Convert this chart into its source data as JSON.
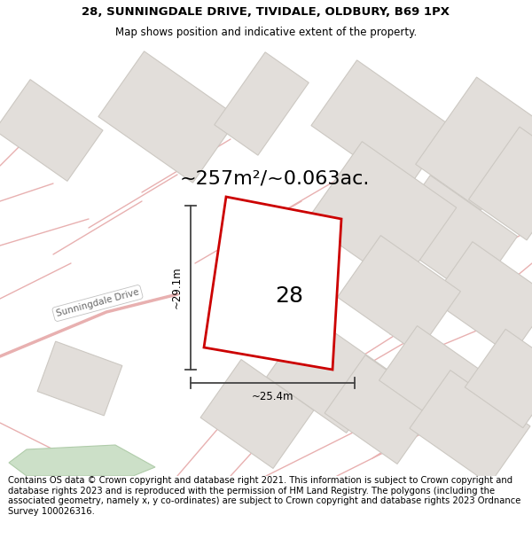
{
  "title_line1": "28, SUNNINGDALE DRIVE, TIVIDALE, OLDBURY, B69 1PX",
  "title_line2": "Map shows position and indicative extent of the property.",
  "area_text": "~257m²/~0.063ac.",
  "dim_vertical": "~29.1m",
  "dim_horizontal": "~25.4m",
  "plot_number": "28",
  "street_label": "Sunningdale Drive",
  "footer_text": "Contains OS data © Crown copyright and database right 2021. This information is subject to Crown copyright and database rights 2023 and is reproduced with the permission of HM Land Registry. The polygons (including the associated geometry, namely x, y co-ordinates) are subject to Crown copyright and database rights 2023 Ordnance Survey 100026316.",
  "bg_color": "#f2f0ec",
  "plot_fill": "#ffffff",
  "plot_edge": "#cc0000",
  "building_fill": "#e2deda",
  "building_edge": "#ccc8c2",
  "road_stroke": "#e8b0b0",
  "green_fill": "#cce0c8",
  "green_edge": "#b0ccaa",
  "street_bg": "#e8e4de",
  "street_text": "#888888",
  "dim_color": "#444444",
  "title_fontsize": 9.5,
  "subtitle_fontsize": 8.5,
  "footer_fontsize": 7.2,
  "area_fontsize": 16,
  "number_fontsize": 18,
  "dim_fontsize": 8.5
}
